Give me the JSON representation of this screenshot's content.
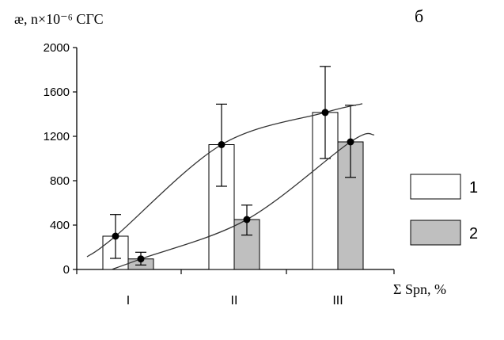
{
  "chart_data": {
    "type": "bar",
    "panel_label": "б",
    "y_axis_title": "æ, n×10⁻⁶ СГС",
    "x_axis_title": "Σ Spn, %",
    "categories": [
      "I",
      "II",
      "III"
    ],
    "ylim": [
      0,
      2000
    ],
    "yticks": [
      "0",
      "400",
      "800",
      "1200",
      "1600",
      "2000"
    ],
    "legend_position": "right",
    "series": [
      {
        "name": "1",
        "color": "#ffffff",
        "values": [
          300,
          1125,
          1415
        ],
        "error_low": [
          100,
          750,
          1000
        ],
        "error_high": [
          495,
          1490,
          1830
        ]
      },
      {
        "name": "2",
        "color": "#bfbfbf",
        "values": [
          95,
          450,
          1150
        ],
        "error_low": [
          40,
          310,
          830
        ],
        "error_high": [
          155,
          580,
          1480
        ]
      }
    ],
    "trend_curves": true
  }
}
